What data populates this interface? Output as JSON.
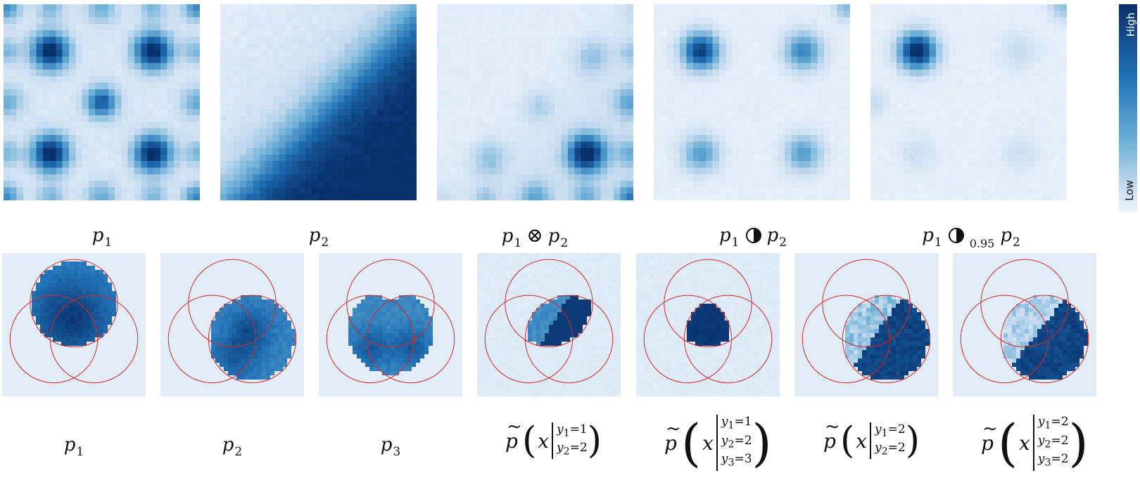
{
  "colorbar": {
    "high_label": "High",
    "low_label": "Low",
    "colors": [
      "#08306b",
      "#2171b5",
      "#6baed6",
      "#c6dbef",
      "#eef4fb"
    ]
  },
  "top_row": {
    "panels": [
      {
        "caption_html_parts": {
          "a": "p",
          "a_sub": "1"
        }
      },
      {
        "caption_html_parts": {
          "a": "p",
          "a_sub": "2"
        }
      },
      {
        "caption_html_parts": {
          "a": "p",
          "a_sub": "1",
          "op": "⊗",
          "b": "p",
          "b_sub": "2"
        }
      },
      {
        "caption_html_parts": {
          "a": "p",
          "a_sub": "1",
          "b": "p",
          "b_sub": "2"
        }
      },
      {
        "caption_html_parts": {
          "a": "p",
          "a_sub": "1",
          "level": "0.95",
          "b": "p",
          "b_sub": "2"
        }
      }
    ]
  },
  "bottom_row": {
    "simple_captions": [
      {
        "p": "p",
        "sub": "1"
      },
      {
        "p": "p",
        "sub": "2"
      },
      {
        "p": "p",
        "sub": "3"
      }
    ],
    "conditional_captions": [
      {
        "p": "p",
        "x": "x",
        "rows": [
          {
            "var": "y",
            "idx": "1",
            "val": "=1"
          },
          {
            "var": "y",
            "idx": "2",
            "val": "=2"
          }
        ]
      },
      {
        "p": "p",
        "x": "x",
        "rows": [
          {
            "var": "y",
            "idx": "1",
            "val": "=1"
          },
          {
            "var": "y",
            "idx": "2",
            "val": "=2"
          },
          {
            "var": "y",
            "idx": "3",
            "val": "=3"
          }
        ]
      },
      {
        "p": "p",
        "x": "x",
        "rows": [
          {
            "var": "y",
            "idx": "1",
            "val": "=2"
          },
          {
            "var": "y",
            "idx": "2",
            "val": "=2"
          }
        ]
      },
      {
        "p": "p",
        "x": "x",
        "rows": [
          {
            "var": "y",
            "idx": "1",
            "val": "=2"
          },
          {
            "var": "y",
            "idx": "2",
            "val": "=2"
          },
          {
            "var": "y",
            "idx": "3",
            "val": "=2"
          }
        ]
      }
    ]
  }
}
